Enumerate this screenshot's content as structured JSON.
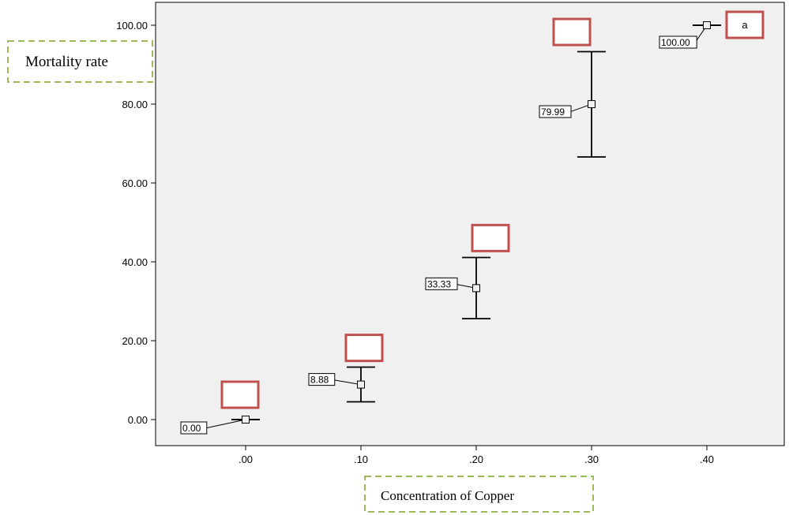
{
  "chart_data": {
    "type": "scatter",
    "xlabel": "Concentration of Copper",
    "ylabel": "Mortality rate",
    "xlim": [
      -0.08,
      0.46
    ],
    "ylim": [
      -7,
      105
    ],
    "x_ticks": [
      0.0,
      0.1,
      0.2,
      0.3,
      0.4
    ],
    "x_tick_labels": [
      ".00",
      ".10",
      ".20",
      ".30",
      ".40"
    ],
    "y_ticks": [
      0,
      20,
      40,
      60,
      80,
      100
    ],
    "y_tick_labels": [
      "0.00",
      "20.00",
      "40.00",
      "60.00",
      "80.00",
      "100.00"
    ],
    "points": [
      {
        "x": 0.0,
        "mean": 0.0,
        "lower": 0.0,
        "upper": 0.0,
        "label": "0.00",
        "annotation": ""
      },
      {
        "x": 0.1,
        "mean": 8.88,
        "lower": 4.5,
        "upper": 13.3,
        "label": "8.88",
        "annotation": ""
      },
      {
        "x": 0.2,
        "mean": 33.33,
        "lower": 25.6,
        "upper": 41.1,
        "label": "33.33",
        "annotation": ""
      },
      {
        "x": 0.3,
        "mean": 79.99,
        "lower": 66.6,
        "upper": 93.3,
        "label": "79.99",
        "annotation": ""
      },
      {
        "x": 0.4,
        "mean": 100.0,
        "lower": 100.0,
        "upper": 100.0,
        "label": "100.00",
        "annotation": "a"
      }
    ],
    "grid": false,
    "plot_background": "#f0f0f0",
    "annotation_box_color": "#c0504d",
    "axis_label_box_color": "#9bbb59"
  }
}
